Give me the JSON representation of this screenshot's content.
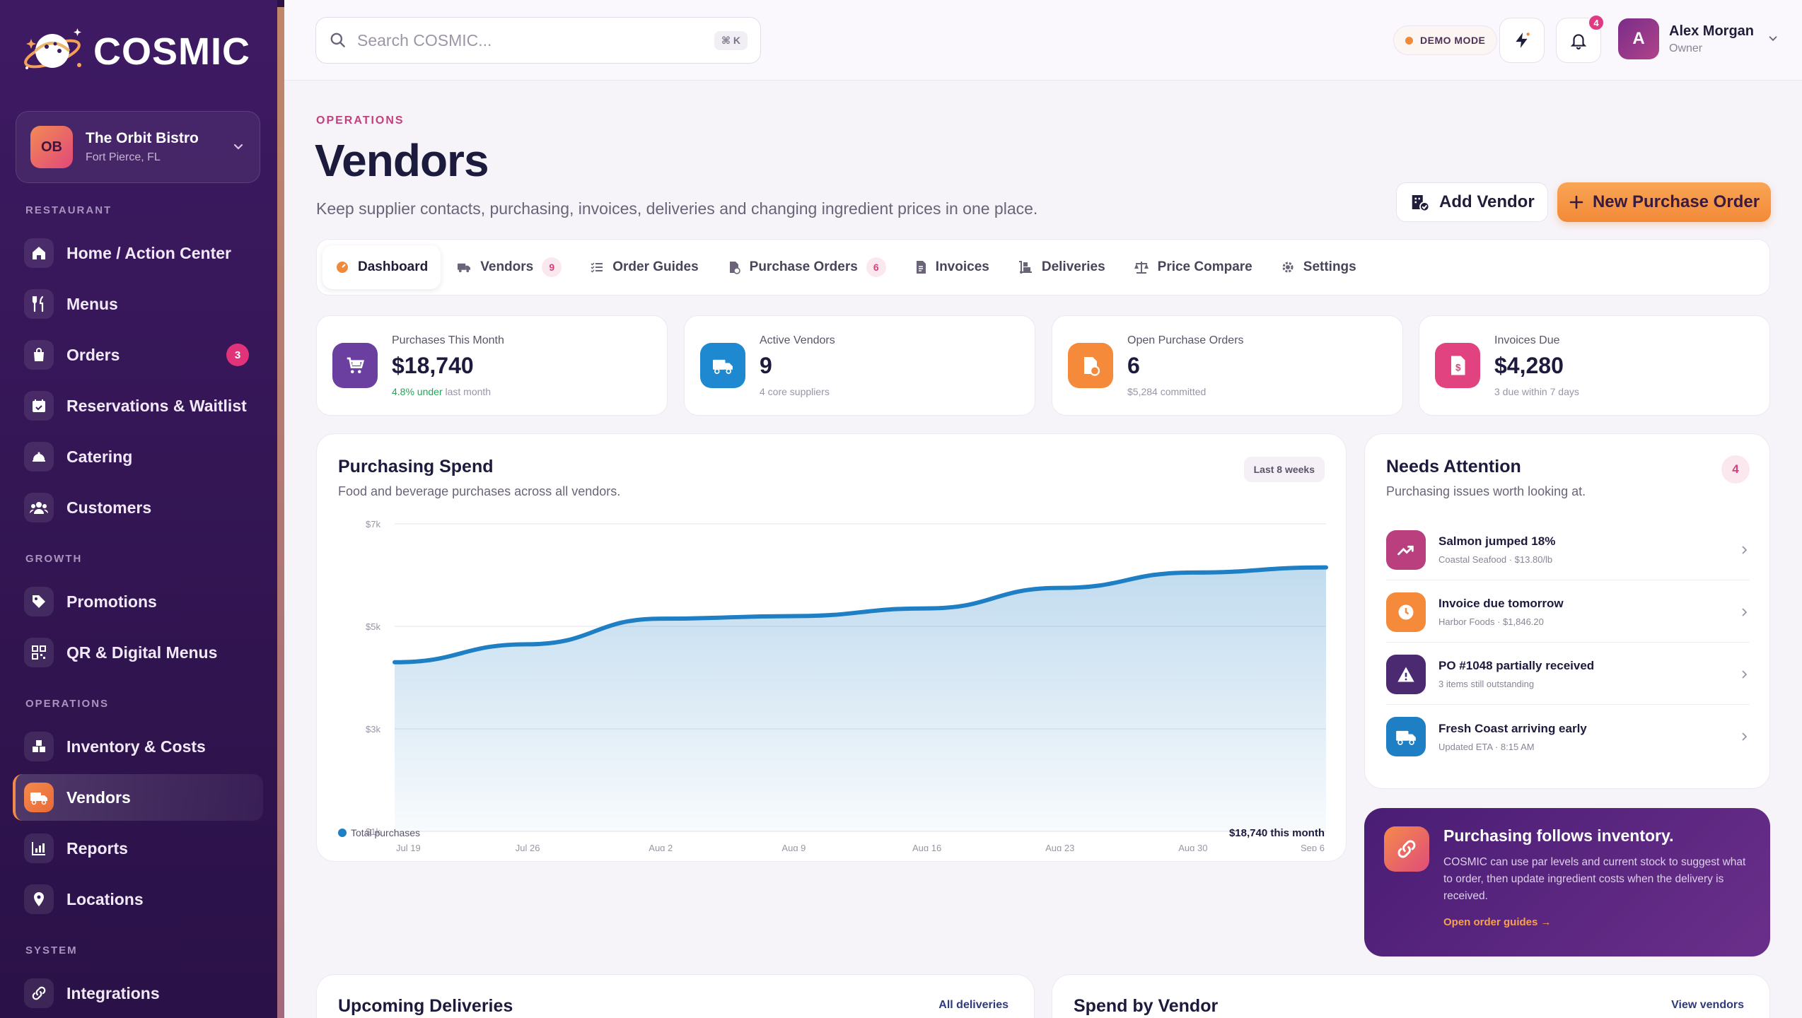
{
  "brand": {
    "name": "COSMIC"
  },
  "restaurant": {
    "initials": "OB",
    "name": "The Orbit Bistro",
    "location": "Fort Pierce, FL"
  },
  "sidebar": {
    "sections": {
      "restaurant": "RESTAURANT",
      "growth": "GROWTH",
      "operations": "OPERATIONS",
      "system": "SYSTEM"
    },
    "items": [
      {
        "label": "Home / Action Center",
        "icon": "home-icon"
      },
      {
        "label": "Menus",
        "icon": "utensils-icon"
      },
      {
        "label": "Orders",
        "icon": "bag-icon",
        "badge": "3"
      },
      {
        "label": "Reservations & Waitlist",
        "icon": "calendar-icon"
      },
      {
        "label": "Catering",
        "icon": "cloche-icon"
      },
      {
        "label": "Customers",
        "icon": "users-icon"
      },
      {
        "label": "Promotions",
        "icon": "tag-icon"
      },
      {
        "label": "QR & Digital Menus",
        "icon": "qr-icon"
      },
      {
        "label": "Inventory & Costs",
        "icon": "boxes-icon"
      },
      {
        "label": "Vendors",
        "icon": "truck-icon",
        "active": true
      },
      {
        "label": "Reports",
        "icon": "chart-icon"
      },
      {
        "label": "Locations",
        "icon": "pin-icon"
      },
      {
        "label": "Integrations",
        "icon": "link-icon"
      }
    ]
  },
  "topbar": {
    "search_placeholder": "Search COSMIC...",
    "search_shortcut": "⌘ K",
    "demo_mode": "DEMO MODE",
    "notifications_count": "4",
    "user": {
      "initial": "A",
      "name": "Alex Morgan",
      "role": "Owner"
    }
  },
  "header": {
    "eyebrow": "OPERATIONS",
    "title": "Vendors",
    "subtitle": "Keep supplier contacts, purchasing, invoices, deliveries and changing ingredient prices in one place.",
    "add_vendor": "Add Vendor",
    "new_po": "New Purchase Order"
  },
  "tabs": [
    {
      "label": "Dashboard",
      "active": true
    },
    {
      "label": "Vendors",
      "badge": "9"
    },
    {
      "label": "Order Guides"
    },
    {
      "label": "Purchase Orders",
      "badge": "6"
    },
    {
      "label": "Invoices"
    },
    {
      "label": "Deliveries"
    },
    {
      "label": "Price Compare"
    },
    {
      "label": "Settings"
    }
  ],
  "stats": [
    {
      "label": "Purchases This Month",
      "value": "$18,740",
      "sub_highlight": "4.8% under",
      "sub": "last month",
      "color": "#6b3fa0"
    },
    {
      "label": "Active Vendors",
      "value": "9",
      "sub": "4 core suppliers",
      "color": "#1e88d0"
    },
    {
      "label": "Open Purchase Orders",
      "value": "6",
      "sub": "$5,284 committed",
      "color": "#f58a3b"
    },
    {
      "label": "Invoices Due",
      "value": "$4,280",
      "sub": "3 due within 7 days",
      "color": "#e0437f"
    }
  ],
  "spend_card": {
    "title": "Purchasing Spend",
    "subtitle": "Food and beverage purchases across all vendors.",
    "range_pill": "Last 8 weeks",
    "legend": "Total purchases",
    "total": "$18,740 this month"
  },
  "chart_data": {
    "type": "area",
    "x": [
      "Jul 19",
      "Jul 26",
      "Aug 2",
      "Aug 9",
      "Aug 16",
      "Aug 23",
      "Aug 30",
      "Sep 6"
    ],
    "series": [
      {
        "name": "Total purchases",
        "values": [
          4300,
          4650,
          5150,
          5200,
          5350,
          5750,
          6050,
          6150
        ]
      }
    ],
    "y_ticks": [
      "$1k",
      "$3k",
      "$5k",
      "$7k"
    ],
    "ylim": [
      1000,
      7000
    ],
    "color": "#1f7fc4",
    "grid": true
  },
  "attention": {
    "title": "Needs Attention",
    "subtitle": "Purchasing issues worth looking at.",
    "count": "4",
    "items": [
      {
        "title": "Salmon jumped 18%",
        "sub": "Coastal Seafood · $13.80/lb",
        "color": "#b93f7e",
        "icon": "trend-up-icon"
      },
      {
        "title": "Invoice due tomorrow",
        "sub": "Harbor Foods · $1,846.20",
        "color": "#f58a3b",
        "icon": "clock-icon"
      },
      {
        "title": "PO #1048 partially received",
        "sub": "3 items still outstanding",
        "color": "#4c2a72",
        "icon": "warning-icon"
      },
      {
        "title": "Fresh Coast arriving early",
        "sub": "Updated ETA · 8:15 AM",
        "color": "#1e7fc4",
        "icon": "truck-icon"
      }
    ]
  },
  "promo": {
    "title": "Purchasing follows inventory.",
    "text": "COSMIC can use par levels and current stock to suggest what to order, then update ingredient costs when the delivery is received.",
    "link": "Open order guides →"
  },
  "bottom": {
    "deliveries_title": "Upcoming Deliveries",
    "deliveries_link": "All deliveries",
    "spend_title": "Spend by Vendor",
    "spend_link": "View vendors"
  }
}
